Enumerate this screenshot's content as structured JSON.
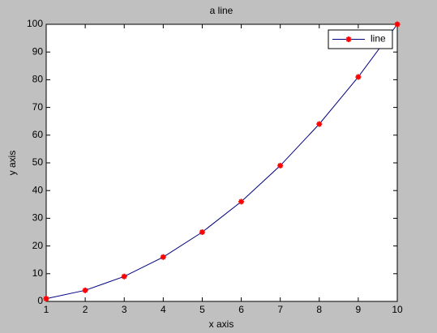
{
  "chart_data": {
    "type": "line",
    "title": "a line",
    "xlabel": "x axis",
    "ylabel": "y axis",
    "x": [
      1,
      2,
      3,
      4,
      5,
      6,
      7,
      8,
      9,
      10
    ],
    "series": [
      {
        "name": "line",
        "color": "#000080",
        "marker_color": "#ff0000",
        "values": [
          1,
          4,
          9,
          16,
          25,
          36,
          49,
          64,
          81,
          100
        ]
      }
    ],
    "xlim": [
      1,
      10
    ],
    "xticks": [
      1,
      2,
      3,
      4,
      5,
      6,
      7,
      8,
      9,
      10
    ],
    "ylim": [
      0,
      100
    ],
    "yticks": [
      0,
      10,
      20,
      30,
      40,
      50,
      60,
      70,
      80,
      90,
      100
    ],
    "grid": false,
    "legend": "northeast"
  }
}
